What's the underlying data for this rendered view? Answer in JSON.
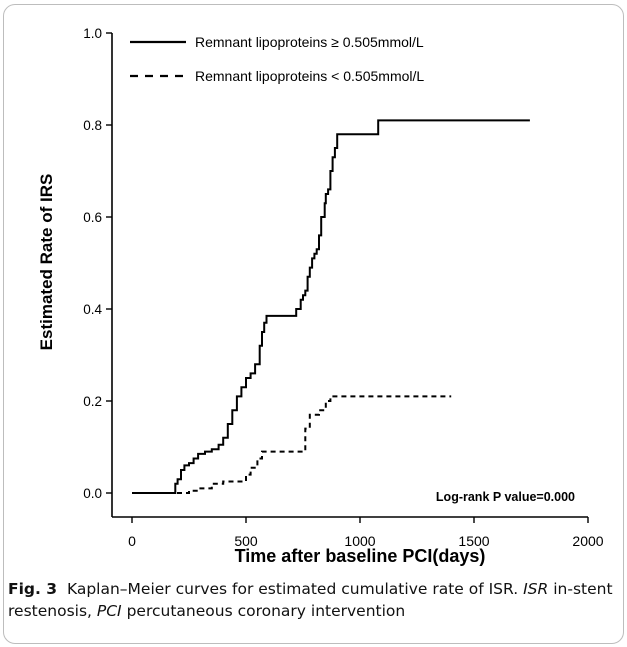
{
  "chart_data": {
    "type": "line",
    "xlabel": "Time after baseline PCI(days)",
    "ylabel": "Estimated Rate of IRS",
    "xlim": [
      0,
      2000
    ],
    "ylim": [
      0,
      1.0
    ],
    "x_ticks": [
      "0",
      "500",
      "1000",
      "1500",
      "2000"
    ],
    "y_ticks": [
      "0.0",
      "0.2",
      "0.4",
      "0.6",
      "0.8",
      "1.0"
    ],
    "grid": false,
    "legend_position": "top-left",
    "annotation": "Log-rank P value=0.000",
    "series": [
      {
        "name": "Remnant lipoproteins ≥ 0.505mmol/L",
        "line_style": "solid",
        "points": [
          [
            0,
            0
          ],
          [
            170,
            0
          ],
          [
            190,
            0.02
          ],
          [
            200,
            0.03
          ],
          [
            215,
            0.05
          ],
          [
            230,
            0.06
          ],
          [
            250,
            0.065
          ],
          [
            270,
            0.075
          ],
          [
            290,
            0.085
          ],
          [
            320,
            0.09
          ],
          [
            350,
            0.095
          ],
          [
            380,
            0.105
          ],
          [
            400,
            0.12
          ],
          [
            420,
            0.15
          ],
          [
            440,
            0.18
          ],
          [
            460,
            0.21
          ],
          [
            480,
            0.23
          ],
          [
            500,
            0.25
          ],
          [
            520,
            0.26
          ],
          [
            540,
            0.28
          ],
          [
            560,
            0.32
          ],
          [
            570,
            0.35
          ],
          [
            580,
            0.37
          ],
          [
            590,
            0.385
          ],
          [
            700,
            0.385
          ],
          [
            720,
            0.4
          ],
          [
            740,
            0.42
          ],
          [
            750,
            0.43
          ],
          [
            760,
            0.44
          ],
          [
            770,
            0.47
          ],
          [
            780,
            0.49
          ],
          [
            790,
            0.51
          ],
          [
            800,
            0.52
          ],
          [
            810,
            0.53
          ],
          [
            820,
            0.56
          ],
          [
            830,
            0.6
          ],
          [
            845,
            0.63
          ],
          [
            850,
            0.65
          ],
          [
            860,
            0.66
          ],
          [
            870,
            0.7
          ],
          [
            880,
            0.73
          ],
          [
            890,
            0.75
          ],
          [
            900,
            0.78
          ],
          [
            1075,
            0.78
          ],
          [
            1080,
            0.81
          ],
          [
            1745,
            0.81
          ]
        ]
      },
      {
        "name": "Remnant lipoproteins < 0.505mmol/L",
        "line_style": "dashed",
        "points": [
          [
            0,
            0
          ],
          [
            180,
            0
          ],
          [
            250,
            0.005
          ],
          [
            300,
            0.01
          ],
          [
            350,
            0.02
          ],
          [
            400,
            0.025
          ],
          [
            450,
            0.025
          ],
          [
            500,
            0.04
          ],
          [
            520,
            0.055
          ],
          [
            550,
            0.075
          ],
          [
            570,
            0.09
          ],
          [
            740,
            0.09
          ],
          [
            760,
            0.14
          ],
          [
            780,
            0.17
          ],
          [
            820,
            0.18
          ],
          [
            850,
            0.2
          ],
          [
            870,
            0.21
          ],
          [
            1400,
            0.21
          ]
        ]
      }
    ]
  },
  "caption": {
    "fig_label": "Fig. 3",
    "text_1": "Kaplan–Meier curves for estimated cumulative rate of ISR.",
    "abbr_1": "ISR",
    "text_2": "in-stent restenosis,",
    "abbr_2": "PCI",
    "text_3": "percutaneous coronary intervention"
  }
}
